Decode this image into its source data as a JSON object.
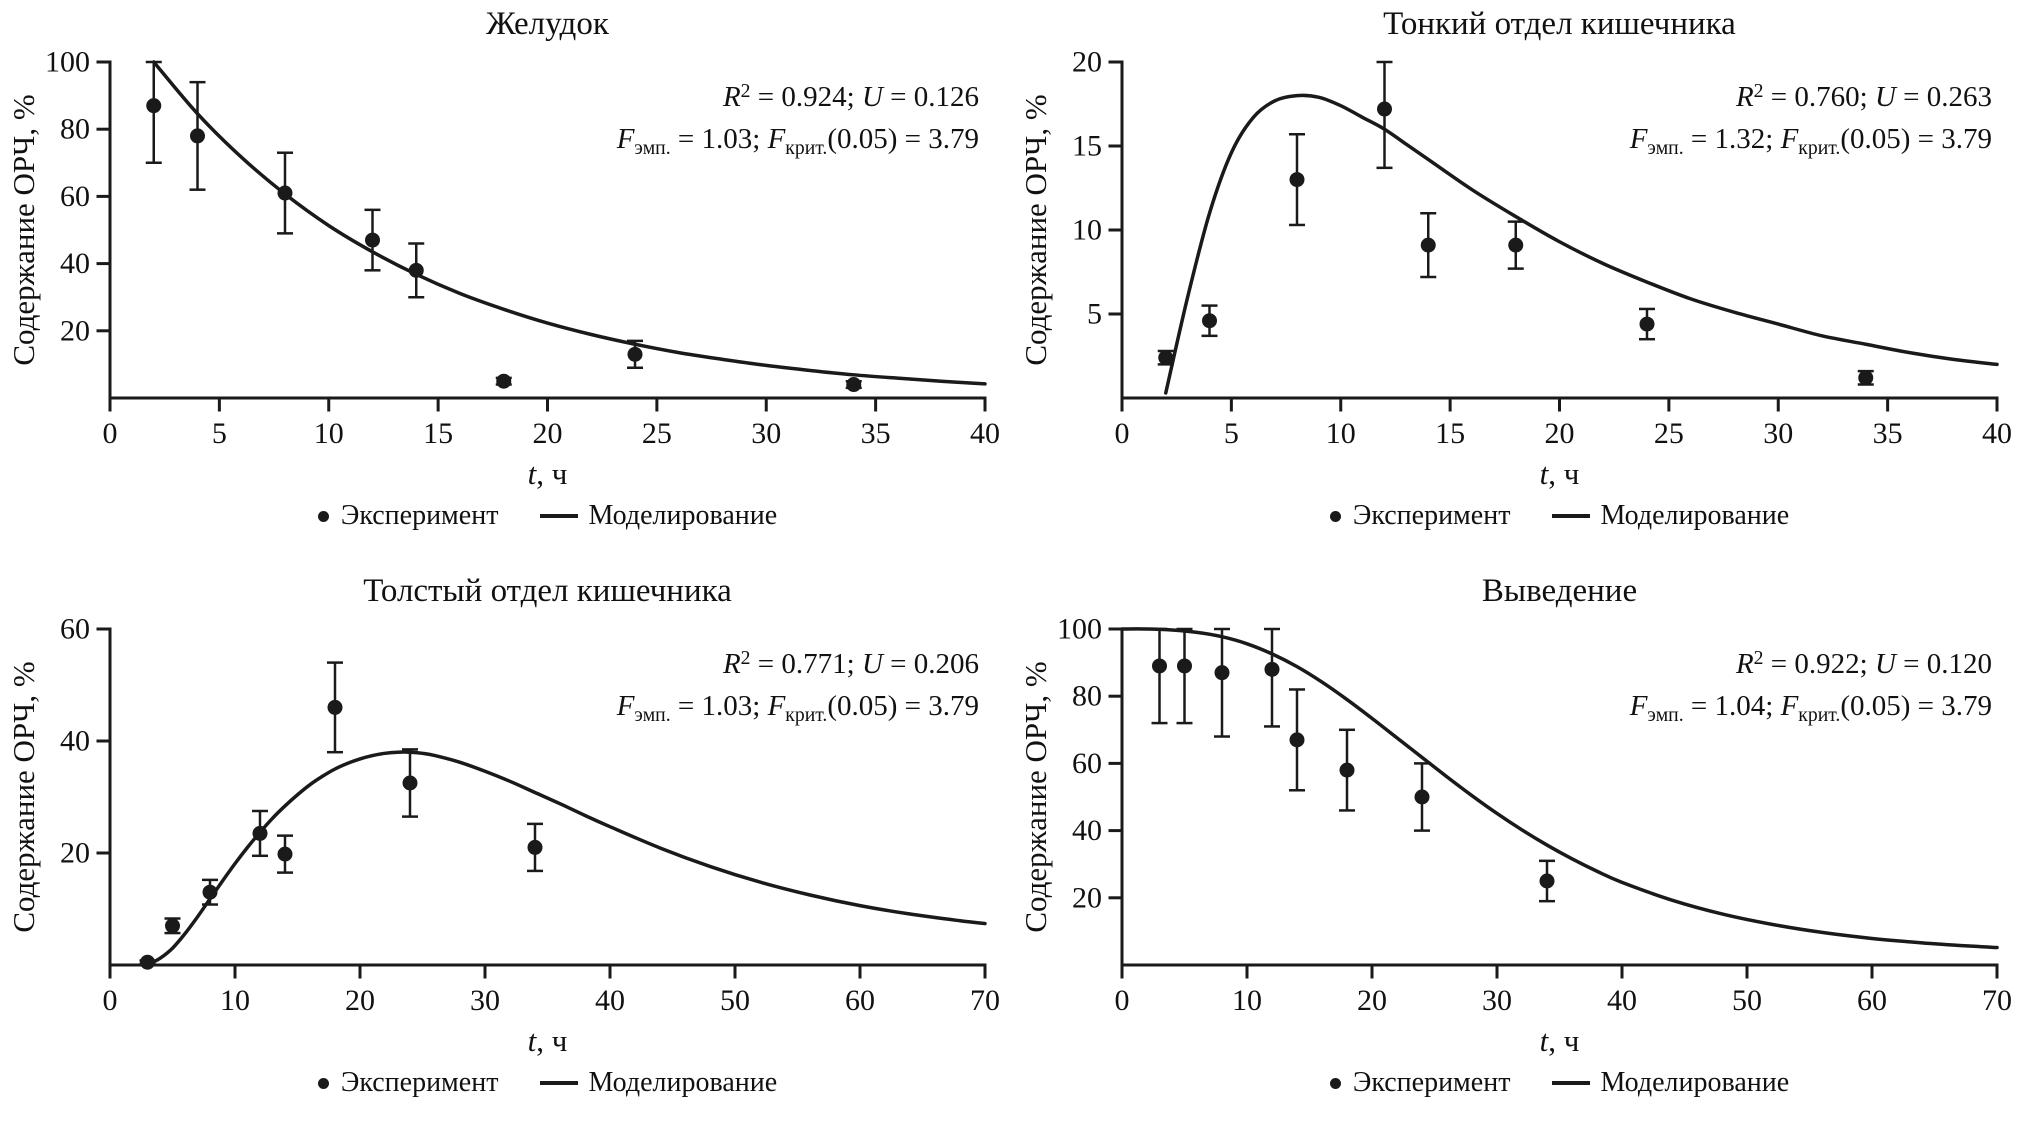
{
  "style": {
    "ink": "#1a1a1a",
    "background": "#ffffff"
  },
  "labels": {
    "ylabel": "Содержание ОРЧ, %",
    "xlabel": [
      {
        "t": "t",
        "i": true
      },
      {
        "t": ", ч"
      }
    ],
    "legend_experiment": "Эксперимент",
    "legend_model": "Моделирование"
  },
  "chart_data": [
    {
      "type": "scatter+line",
      "title": "Желудок",
      "xlabel": "t, ч",
      "ylabel": "Содержание ОРЧ, %",
      "xlim": [
        0,
        40
      ],
      "ylim": [
        0,
        100
      ],
      "xticks": [
        0,
        5,
        10,
        15,
        20,
        25,
        30,
        35,
        40
      ],
      "yticks": [
        20,
        40,
        60,
        80,
        100
      ],
      "r2": 0.924,
      "u": 0.126,
      "f_emp": 1.03,
      "f_crit_005": 3.79,
      "stats": [
        [
          {
            "t": "R",
            "i": true
          },
          {
            "t": "2",
            "sup": true
          },
          {
            "t": " = 0.924; "
          },
          {
            "t": "U",
            "i": true
          },
          {
            "t": " = 0.126"
          }
        ],
        [
          {
            "t": "F",
            "i": true
          },
          {
            "t": "эмп.",
            "sub": true
          },
          {
            "t": " = 1.03; "
          },
          {
            "t": "F",
            "i": true
          },
          {
            "t": "крит.",
            "sub": true
          },
          {
            "t": "(0.05) = 3.79"
          }
        ]
      ],
      "points": [
        [
          2,
          87,
          17
        ],
        [
          4,
          78,
          16
        ],
        [
          8,
          61,
          12
        ],
        [
          12,
          47,
          9
        ],
        [
          14,
          38,
          8
        ],
        [
          18,
          5,
          1
        ],
        [
          24,
          13,
          4
        ],
        [
          34,
          4,
          1
        ]
      ],
      "curve": [
        [
          2,
          100
        ],
        [
          4,
          84.6
        ],
        [
          6,
          71.7
        ],
        [
          8,
          60.7
        ],
        [
          10,
          51.3
        ],
        [
          12,
          43.5
        ],
        [
          14,
          36.8
        ],
        [
          16,
          31.1
        ],
        [
          18,
          26.4
        ],
        [
          20,
          22.3
        ],
        [
          22,
          18.9
        ],
        [
          24,
          16
        ],
        [
          26,
          13.5
        ],
        [
          28,
          11.5
        ],
        [
          30,
          9.7
        ],
        [
          32,
          8.2
        ],
        [
          34,
          6.9
        ],
        [
          36,
          5.9
        ],
        [
          38,
          5
        ],
        [
          40,
          4.2
        ]
      ]
    },
    {
      "type": "scatter+line",
      "title": "Тонкий отдел кишечника",
      "xlabel": "t, ч",
      "ylabel": "Содержание ОРЧ, %",
      "xlim": [
        0,
        40
      ],
      "ylim": [
        0,
        20
      ],
      "xticks": [
        0,
        5,
        10,
        15,
        20,
        25,
        30,
        35,
        40
      ],
      "yticks": [
        5,
        10,
        15,
        20
      ],
      "r2": 0.76,
      "u": 0.263,
      "f_emp": 1.32,
      "f_crit_005": 3.79,
      "stats": [
        [
          {
            "t": "R",
            "i": true
          },
          {
            "t": "2",
            "sup": true
          },
          {
            "t": " = 0.760; "
          },
          {
            "t": "U",
            "i": true
          },
          {
            "t": " = 0.263"
          }
        ],
        [
          {
            "t": "F",
            "i": true
          },
          {
            "t": "эмп.",
            "sub": true
          },
          {
            "t": " = 1.32; "
          },
          {
            "t": "F",
            "i": true
          },
          {
            "t": "крит.",
            "sub": true
          },
          {
            "t": "(0.05) = 3.79"
          }
        ]
      ],
      "points": [
        [
          2,
          2.4,
          0.4
        ],
        [
          4,
          4.6,
          0.9
        ],
        [
          8,
          13,
          2.7
        ],
        [
          12,
          17.2,
          3.5
        ],
        [
          14,
          9.1,
          1.9
        ],
        [
          18,
          9.1,
          1.4
        ],
        [
          24,
          4.4,
          0.9
        ],
        [
          34,
          1.2,
          0.4
        ]
      ],
      "curve": [
        [
          2,
          0.3
        ],
        [
          3,
          6
        ],
        [
          4,
          11
        ],
        [
          5,
          14.6
        ],
        [
          6,
          16.7
        ],
        [
          7,
          17.7
        ],
        [
          8,
          18
        ],
        [
          9,
          17.9
        ],
        [
          10,
          17.4
        ],
        [
          11,
          16.7
        ],
        [
          12,
          16
        ],
        [
          13,
          15.1
        ],
        [
          14,
          14.2
        ],
        [
          16,
          12.4
        ],
        [
          18,
          10.8
        ],
        [
          20,
          9.3
        ],
        [
          22,
          8
        ],
        [
          24,
          6.9
        ],
        [
          26,
          5.9
        ],
        [
          28,
          5.1
        ],
        [
          30,
          4.4
        ],
        [
          32,
          3.7
        ],
        [
          34,
          3.2
        ],
        [
          36,
          2.7
        ],
        [
          38,
          2.3
        ],
        [
          40,
          2
        ]
      ]
    },
    {
      "type": "scatter+line",
      "title": "Толстый отдел кишечника",
      "xlabel": "t, ч",
      "ylabel": "Содержание ОРЧ, %",
      "xlim": [
        0,
        70
      ],
      "ylim": [
        0,
        60
      ],
      "xticks": [
        0,
        10,
        20,
        30,
        40,
        50,
        60,
        70
      ],
      "yticks": [
        20,
        40,
        60
      ],
      "r2": 0.771,
      "u": 0.206,
      "f_emp": 1.03,
      "f_crit_005": 3.79,
      "stats": [
        [
          {
            "t": "R",
            "i": true
          },
          {
            "t": "2",
            "sup": true
          },
          {
            "t": " = 0.771; "
          },
          {
            "t": "U",
            "i": true
          },
          {
            "t": " = 0.206"
          }
        ],
        [
          {
            "t": "F",
            "i": true
          },
          {
            "t": "эмп.",
            "sub": true
          },
          {
            "t": " = 1.03; "
          },
          {
            "t": "F",
            "i": true
          },
          {
            "t": "крит.",
            "sub": true
          },
          {
            "t": "(0.05) = 3.79"
          }
        ]
      ],
      "points": [
        [
          3,
          0.5,
          0.3
        ],
        [
          5,
          7,
          1.3
        ],
        [
          8,
          13,
          2.2
        ],
        [
          12,
          23.5,
          4
        ],
        [
          14,
          19.8,
          3.3
        ],
        [
          18,
          46,
          8
        ],
        [
          24,
          32.5,
          6
        ],
        [
          34,
          21,
          4.2
        ]
      ],
      "curve": [
        [
          3,
          0
        ],
        [
          4,
          1.2
        ],
        [
          5,
          3
        ],
        [
          6,
          5.6
        ],
        [
          7,
          8.6
        ],
        [
          8,
          11.8
        ],
        [
          9,
          15
        ],
        [
          10,
          18.1
        ],
        [
          11,
          21
        ],
        [
          12,
          23.7
        ],
        [
          13,
          26.2
        ],
        [
          14,
          28.4
        ],
        [
          15,
          30.4
        ],
        [
          16,
          32.2
        ],
        [
          17,
          33.7
        ],
        [
          18,
          35
        ],
        [
          19,
          36
        ],
        [
          20,
          36.8
        ],
        [
          21,
          37.4
        ],
        [
          22,
          37.8
        ],
        [
          23,
          38
        ],
        [
          24,
          38
        ],
        [
          25,
          37.8
        ],
        [
          26,
          37.4
        ],
        [
          28,
          36.2
        ],
        [
          30,
          34.6
        ],
        [
          32,
          32.8
        ],
        [
          34,
          30.8
        ],
        [
          36,
          28.8
        ],
        [
          38,
          26.7
        ],
        [
          40,
          24.7
        ],
        [
          44,
          20.9
        ],
        [
          48,
          17.6
        ],
        [
          52,
          14.8
        ],
        [
          56,
          12.5
        ],
        [
          60,
          10.6
        ],
        [
          64,
          9.1
        ],
        [
          68,
          7.9
        ],
        [
          70,
          7.4
        ]
      ]
    },
    {
      "type": "scatter+line",
      "title": "Выведение",
      "xlabel": "t, ч",
      "ylabel": "Содержание ОРЧ, %",
      "xlim": [
        0,
        70
      ],
      "ylim": [
        0,
        100
      ],
      "xticks": [
        0,
        10,
        20,
        30,
        40,
        50,
        60,
        70
      ],
      "yticks": [
        20,
        40,
        60,
        80,
        100
      ],
      "r2": 0.922,
      "u": 0.12,
      "f_emp": 1.04,
      "f_crit_005": 3.79,
      "stats": [
        [
          {
            "t": "R",
            "i": true
          },
          {
            "t": "2",
            "sup": true
          },
          {
            "t": " = 0.922; "
          },
          {
            "t": "U",
            "i": true
          },
          {
            "t": " = 0.120"
          }
        ],
        [
          {
            "t": "F",
            "i": true
          },
          {
            "t": "эмп.",
            "sub": true
          },
          {
            "t": " = 1.04; "
          },
          {
            "t": "F",
            "i": true
          },
          {
            "t": "крит.",
            "sub": true
          },
          {
            "t": "(0.05) = 3.79"
          }
        ]
      ],
      "points": [
        [
          3,
          89,
          17
        ],
        [
          5,
          89,
          17
        ],
        [
          8,
          87,
          19
        ],
        [
          12,
          88,
          17
        ],
        [
          14,
          67,
          15
        ],
        [
          18,
          58,
          12
        ],
        [
          24,
          50,
          10
        ],
        [
          34,
          25,
          6
        ]
      ],
      "curve": [
        [
          0,
          100
        ],
        [
          2,
          100
        ],
        [
          4,
          99.7
        ],
        [
          6,
          99
        ],
        [
          8,
          97.7
        ],
        [
          10,
          95.6
        ],
        [
          12,
          92.6
        ],
        [
          14,
          88.8
        ],
        [
          16,
          84.2
        ],
        [
          18,
          79
        ],
        [
          20,
          73.4
        ],
        [
          22,
          67.6
        ],
        [
          24,
          61.8
        ],
        [
          26,
          56
        ],
        [
          28,
          50.4
        ],
        [
          30,
          45.1
        ],
        [
          32,
          40.2
        ],
        [
          34,
          35.7
        ],
        [
          36,
          31.6
        ],
        [
          38,
          27.9
        ],
        [
          40,
          24.6
        ],
        [
          44,
          19.3
        ],
        [
          48,
          15.2
        ],
        [
          52,
          12.1
        ],
        [
          56,
          9.7
        ],
        [
          60,
          7.9
        ],
        [
          64,
          6.6
        ],
        [
          68,
          5.6
        ],
        [
          70,
          5.2
        ]
      ]
    }
  ]
}
